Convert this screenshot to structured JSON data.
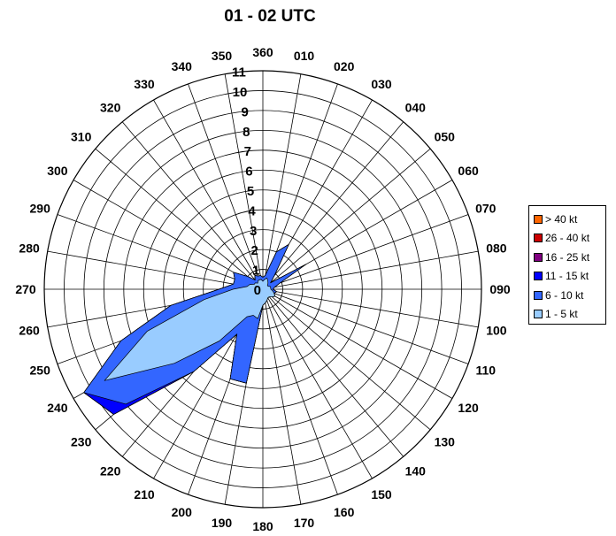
{
  "chart_data": {
    "type": "radar",
    "title": "01 - 02 UTC",
    "direction_labels": [
      "360",
      "010",
      "020",
      "030",
      "040",
      "050",
      "060",
      "070",
      "080",
      "090",
      "100",
      "110",
      "120",
      "130",
      "140",
      "150",
      "160",
      "170",
      "180",
      "190",
      "200",
      "210",
      "220",
      "230",
      "240",
      "250",
      "260",
      "270",
      "280",
      "290",
      "300",
      "310",
      "320",
      "330",
      "340",
      "350"
    ],
    "radial_labels": [
      "0",
      "1",
      "2",
      "3",
      "4",
      "5",
      "6",
      "7",
      "8",
      "9",
      "10",
      "11"
    ],
    "rmax": 11,
    "grid": true,
    "legend_position": "right",
    "legend": [
      "> 40 kt",
      "26 - 40 kt",
      "16 - 25 kt",
      "11 - 15 kt",
      "6 - 10 kt",
      "1 - 5 kt"
    ],
    "series": [
      {
        "name": "1 - 5 kt",
        "color": "#99ccff",
        "values": [
          0.4,
          0.5,
          0.6,
          0.5,
          0.4,
          0.3,
          0.3,
          0.4,
          0.4,
          0.4,
          0.5,
          0.6,
          0.7,
          0.6,
          0.5,
          0.5,
          0.6,
          0.7,
          0.8,
          1.5,
          1.4,
          1.6,
          3.4,
          5.8,
          9.2,
          6.2,
          3.0,
          1.5,
          0.8,
          0.7,
          0.5,
          0.5,
          0.4,
          0.5,
          0.5,
          0.5
        ]
      },
      {
        "name": "6 - 10 kt",
        "color": "#3366ff",
        "values": [
          0.6,
          0.7,
          2.0,
          2.6,
          0.9,
          0.5,
          2.5,
          0.9,
          0.6,
          0.5,
          0.7,
          0.6,
          0.7,
          0.6,
          0.5,
          0.5,
          0.6,
          0.7,
          0.8,
          4.8,
          4.8,
          2.6,
          5.4,
          9.0,
          10.4,
          7.6,
          4.7,
          2.2,
          1.5,
          1.5,
          1.7,
          1.0,
          0.6,
          0.8,
          0.7,
          0.7
        ]
      },
      {
        "name": "11 - 15 kt",
        "color": "#0000ff",
        "values": [
          0.6,
          0.7,
          2.0,
          2.6,
          0.9,
          0.5,
          2.5,
          0.9,
          0.6,
          0.5,
          0.7,
          0.6,
          0.7,
          0.6,
          0.5,
          0.5,
          0.6,
          0.7,
          0.8,
          4.8,
          4.8,
          2.6,
          5.4,
          9.8,
          10.4,
          7.6,
          4.7,
          2.2,
          1.5,
          1.5,
          1.7,
          1.0,
          0.6,
          0.8,
          0.7,
          0.7
        ]
      },
      {
        "name": "16 - 25 kt",
        "color": "#800080",
        "values": [
          0.6,
          0.7,
          2.0,
          2.6,
          0.9,
          0.5,
          2.5,
          0.9,
          0.6,
          0.5,
          0.7,
          0.6,
          0.7,
          0.6,
          0.5,
          0.5,
          0.6,
          0.7,
          0.8,
          4.8,
          4.8,
          2.6,
          5.4,
          9.8,
          10.4,
          7.6,
          4.7,
          2.2,
          1.5,
          1.5,
          1.7,
          1.0,
          0.6,
          0.8,
          0.7,
          0.7
        ]
      },
      {
        "name": "26 - 40 kt",
        "color": "#cc0000",
        "values": [
          0.6,
          0.7,
          2.0,
          2.6,
          0.9,
          0.5,
          2.5,
          0.9,
          0.6,
          0.5,
          0.7,
          0.6,
          0.7,
          0.6,
          0.5,
          0.5,
          0.6,
          0.7,
          0.8,
          4.8,
          4.8,
          2.6,
          5.4,
          9.8,
          10.4,
          7.6,
          4.7,
          2.2,
          1.5,
          1.5,
          1.7,
          1.0,
          0.6,
          0.8,
          0.7,
          0.7
        ]
      },
      {
        "name": "> 40 kt",
        "color": "#ff6600",
        "values": [
          0.6,
          0.7,
          2.0,
          2.6,
          0.9,
          0.5,
          2.5,
          0.9,
          0.6,
          0.5,
          0.7,
          0.6,
          0.7,
          0.6,
          0.5,
          0.5,
          0.6,
          0.7,
          0.8,
          4.8,
          4.8,
          2.6,
          5.4,
          9.8,
          10.4,
          7.6,
          4.7,
          2.2,
          1.5,
          1.5,
          1.7,
          1.0,
          0.6,
          0.8,
          0.7,
          0.7
        ]
      }
    ]
  }
}
